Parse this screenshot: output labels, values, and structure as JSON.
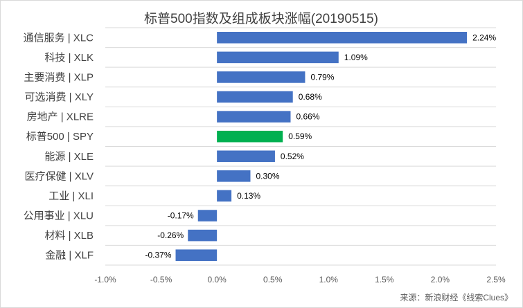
{
  "chart_data": {
    "type": "bar",
    "orientation": "horizontal",
    "title": "标普500指数及组成板块涨幅(20190515)",
    "categories": [
      "通信服务 | XLC",
      "科技 | XLK",
      "主要消费 | XLP",
      "可选消费 | XLY",
      "房地产 | XLRE",
      "标普500 | SPY",
      "能源 | XLE",
      "医疗保健 | XLV",
      "工业 | XLI",
      "公用事业 | XLU",
      "材料 | XLB",
      "金融 | XLF"
    ],
    "values": [
      2.24,
      1.09,
      0.79,
      0.68,
      0.66,
      0.59,
      0.52,
      0.3,
      0.13,
      -0.17,
      -0.26,
      -0.37
    ],
    "data_labels": [
      "2.24%",
      "1.09%",
      "0.79%",
      "0.68%",
      "0.66%",
      "0.59%",
      "0.52%",
      "0.30%",
      "0.13%",
      "-0.17%",
      "-0.26%",
      "-0.37%"
    ],
    "highlight_category": "标普500 | SPY",
    "xlim": [
      -1.0,
      2.5
    ],
    "x_ticks": [
      -1.0,
      -0.5,
      0.0,
      0.5,
      1.0,
      1.5,
      2.0,
      2.5
    ],
    "x_tick_labels": [
      "-1.0%",
      "-0.5%",
      "0.0%",
      "0.5%",
      "1.0%",
      "1.5%",
      "2.0%",
      "2.5%"
    ],
    "xlabel": "",
    "ylabel": "",
    "grid": "horizontal",
    "legend": "none",
    "colors": {
      "bar": "#4472C4",
      "highlight": "#00B050",
      "grid": "#D9D9D9"
    },
    "source": "来源：新浪财经《线索Clues》"
  }
}
